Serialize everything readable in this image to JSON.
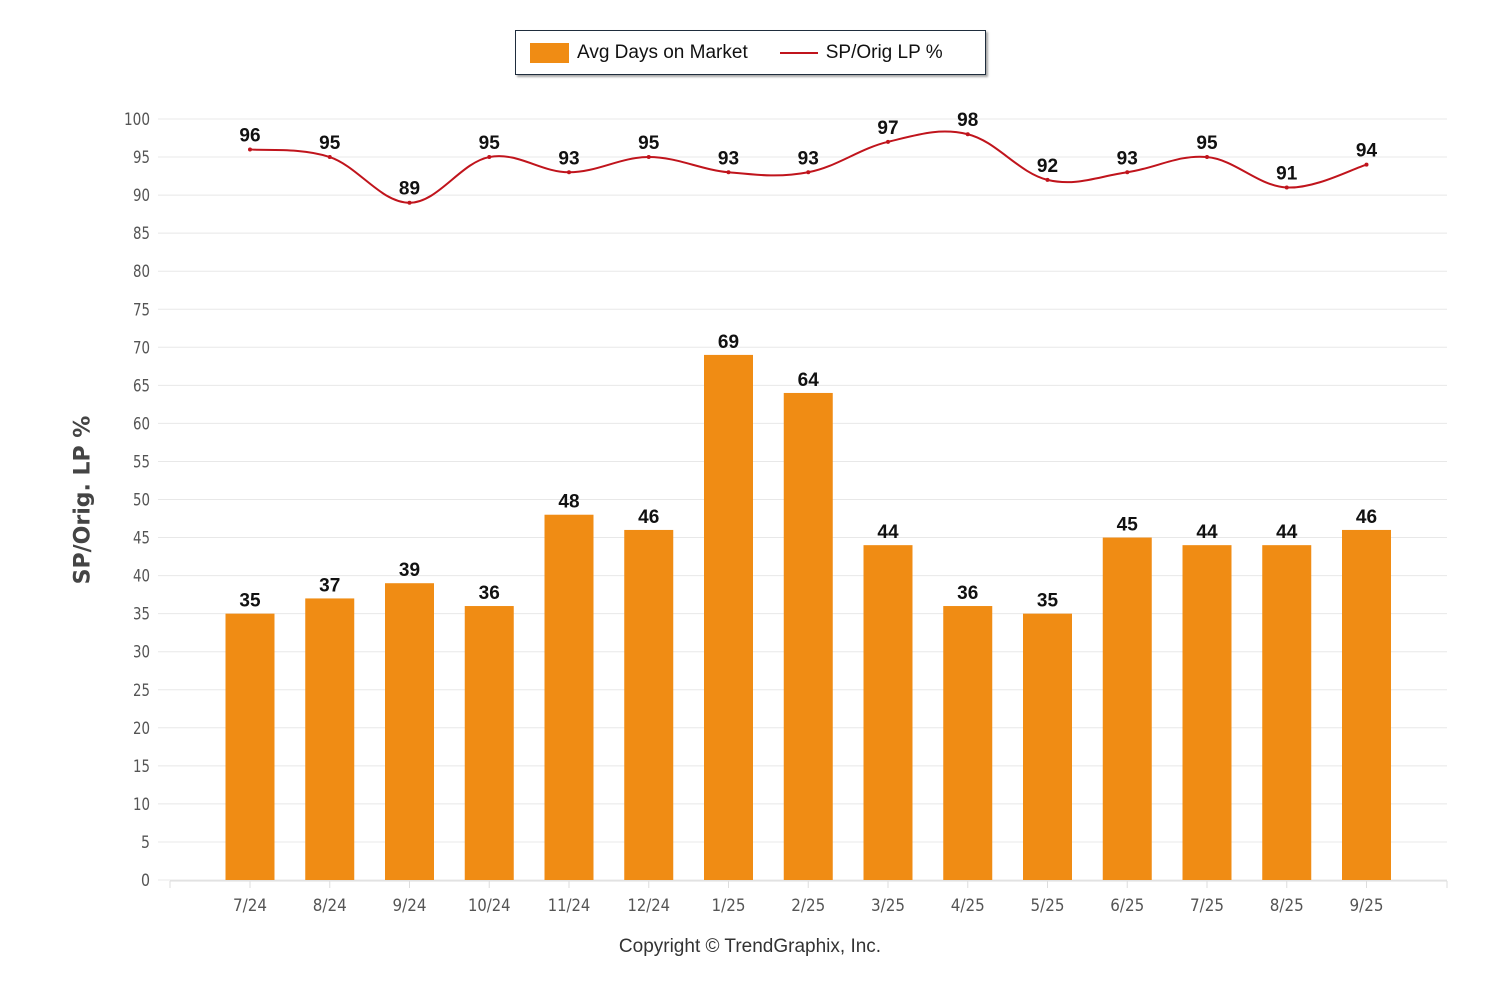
{
  "chart_data": {
    "type": "bar",
    "title": "",
    "xlabel": "",
    "ylabel": "SP/Orig. LP %",
    "ylim": [
      0,
      100
    ],
    "yticks": [
      "0",
      "5",
      "10",
      "15",
      "20",
      "25",
      "30",
      "35",
      "40",
      "45",
      "50",
      "55",
      "60",
      "65",
      "70",
      "75",
      "80",
      "85",
      "90",
      "95",
      "100"
    ],
    "grid": true,
    "legend_position": "top-center",
    "categories": [
      "7/24",
      "8/24",
      "9/24",
      "10/24",
      "11/24",
      "12/24",
      "1/25",
      "2/25",
      "3/25",
      "4/25",
      "5/25",
      "6/25",
      "7/25",
      "8/25",
      "9/25"
    ],
    "series": [
      {
        "name": "Avg Days on Market",
        "type": "bar",
        "color": "#F08C14",
        "values": [
          35,
          37,
          39,
          36,
          48,
          46,
          69,
          64,
          44,
          36,
          35,
          45,
          44,
          44,
          46
        ]
      },
      {
        "name": "SP/Orig LP %",
        "type": "line",
        "color": "#C0141C",
        "values": [
          96,
          95,
          89,
          95,
          93,
          95,
          93,
          93,
          97,
          98,
          92,
          93,
          95,
          91,
          94
        ]
      }
    ]
  },
  "legend": {
    "items": [
      {
        "label": "Avg Days on Market",
        "color": "#F08C14"
      },
      {
        "label": "SP/Orig LP %",
        "color": "#C0141C"
      }
    ]
  },
  "footer": {
    "copyright": "Copyright © TrendGraphix, Inc."
  }
}
